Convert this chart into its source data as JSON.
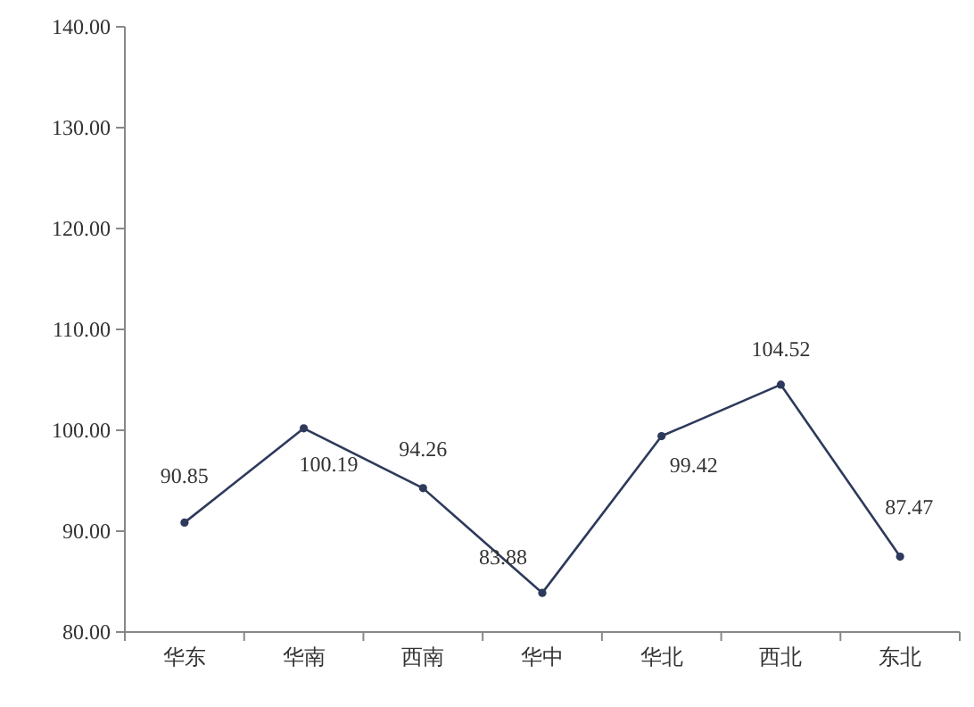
{
  "chart_data": {
    "type": "line",
    "categories": [
      "华东",
      "华南",
      "西南",
      "华中",
      "华北",
      "西北",
      "东北"
    ],
    "series": [
      {
        "color": "#2e3a5c",
        "values": [
          90.85,
          100.19,
          94.26,
          83.88,
          99.42,
          104.52,
          87.47
        ]
      }
    ],
    "ylim": [
      80,
      140
    ],
    "yticks": [
      {
        "value": 80,
        "label": "80.00"
      },
      {
        "value": 90,
        "label": "90.00"
      },
      {
        "value": 100,
        "label": "100.00"
      },
      {
        "value": 110,
        "label": "110.00"
      },
      {
        "value": 120,
        "label": "120.00"
      },
      {
        "value": 130,
        "label": "130.00"
      },
      {
        "value": 140,
        "label": "140.00"
      }
    ],
    "data_labels": true,
    "marker": "circle",
    "line_style": "solid",
    "grid": false
  }
}
